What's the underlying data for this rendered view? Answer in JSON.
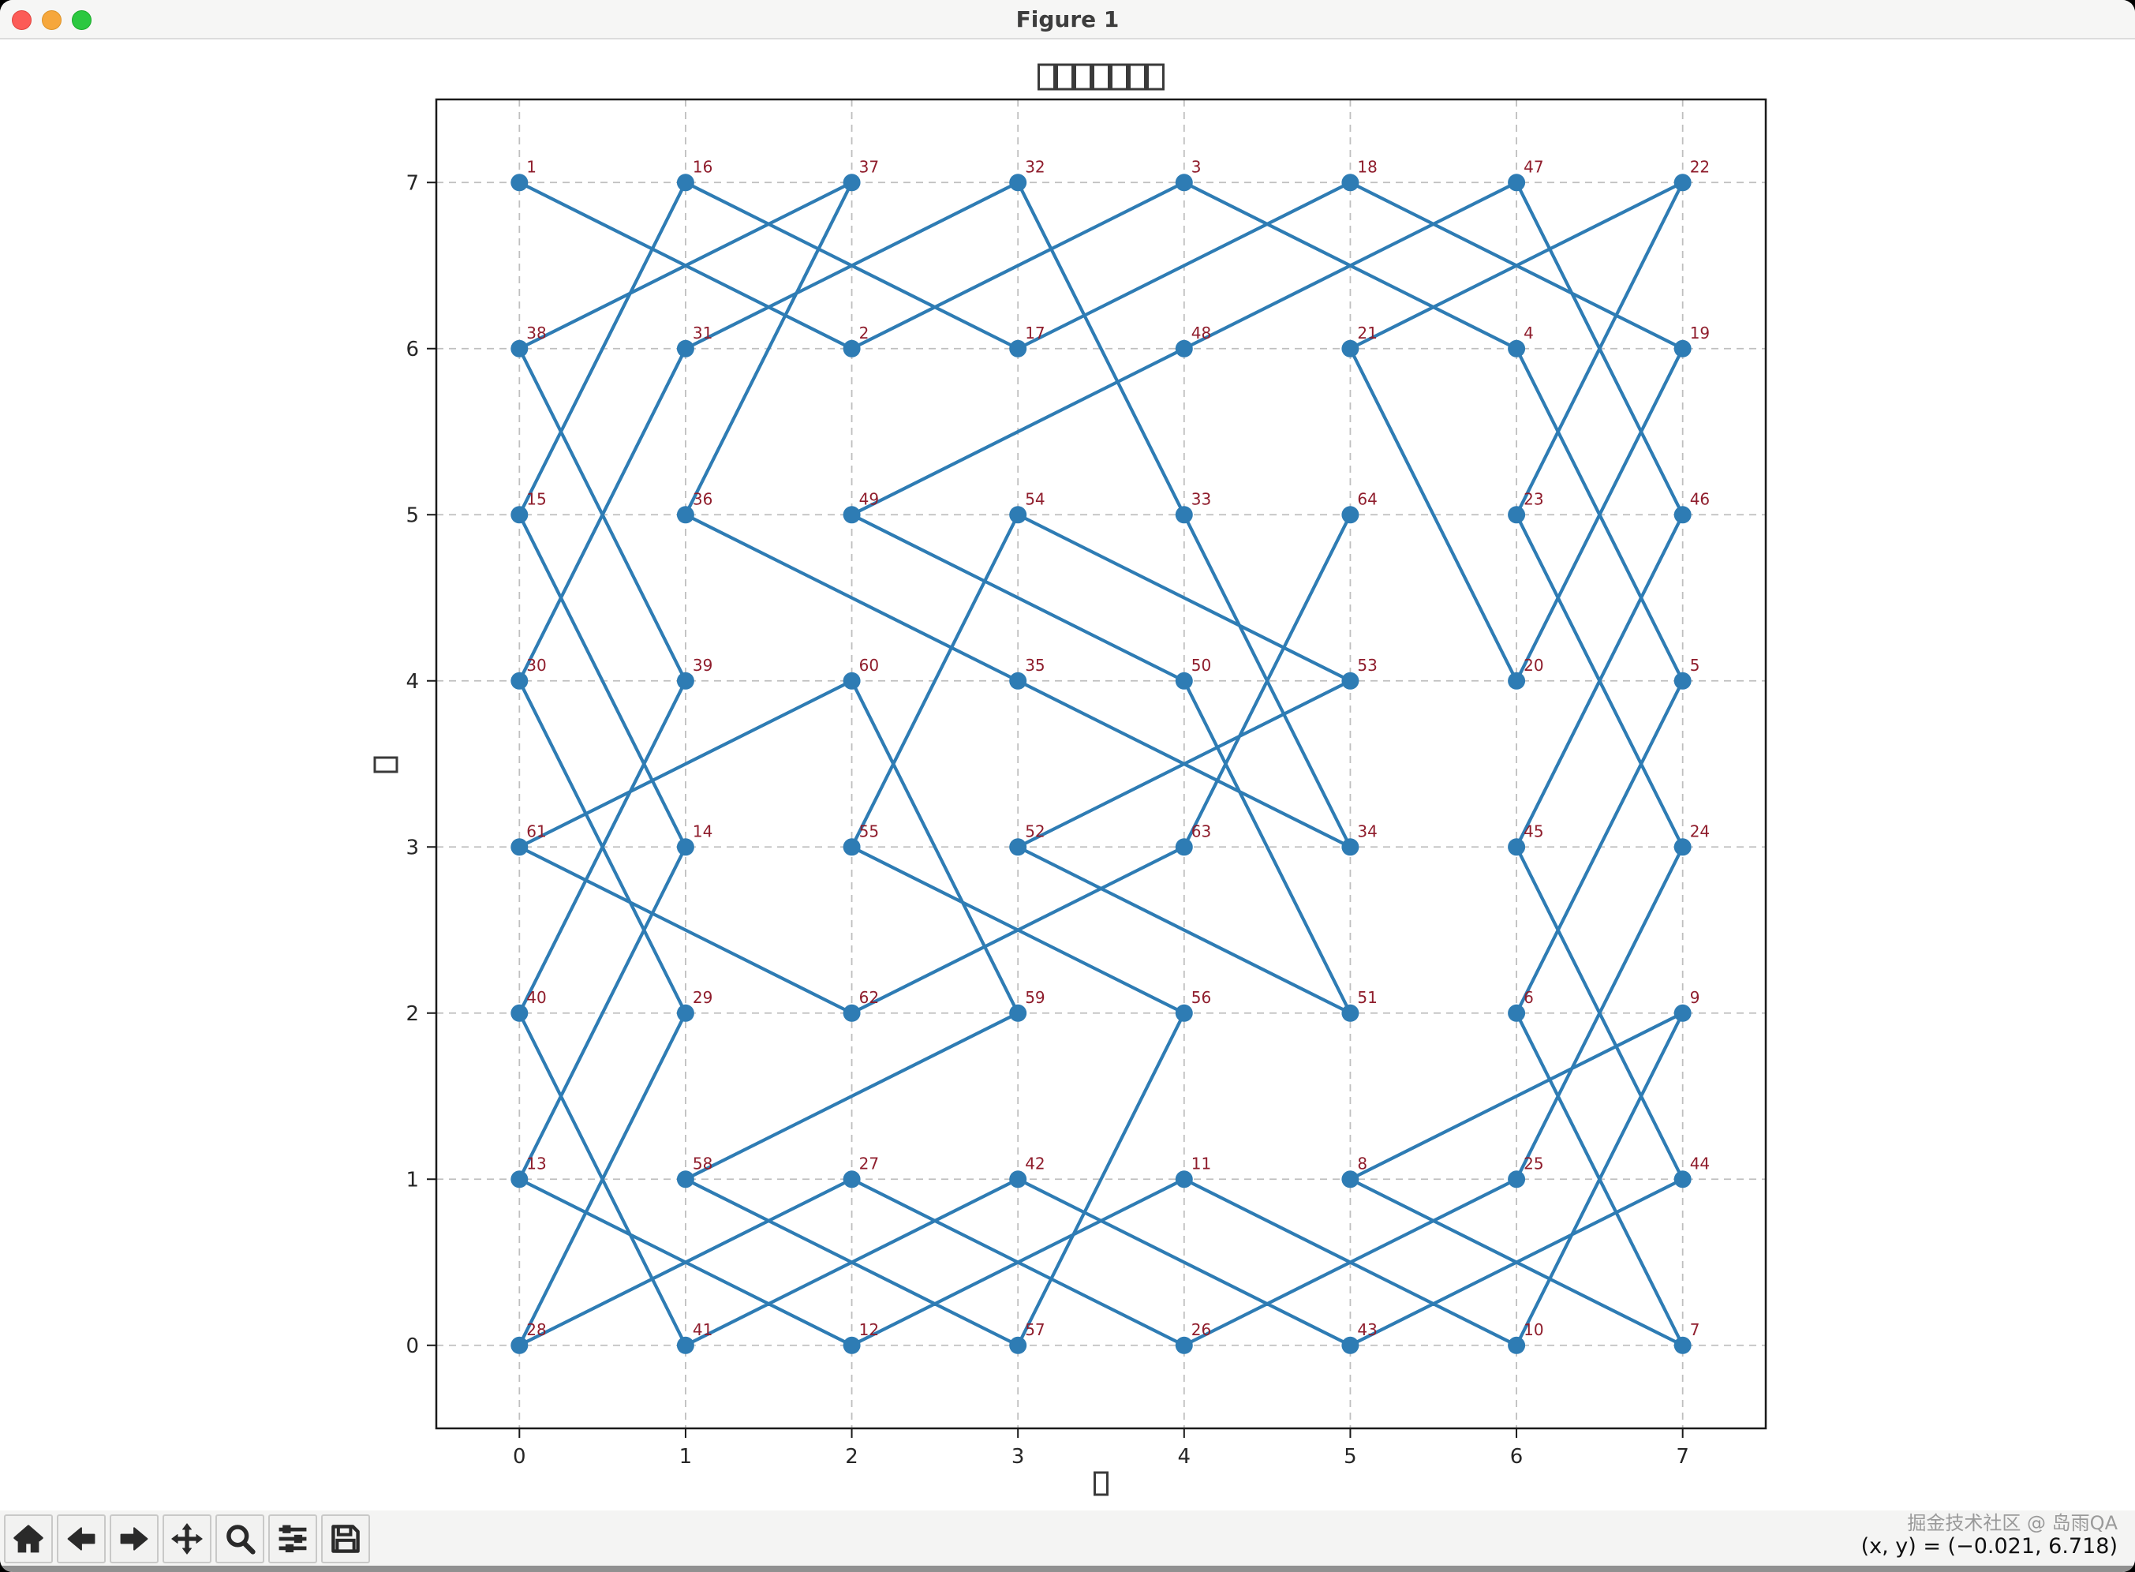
{
  "window": {
    "title": "Figure 1",
    "traffic_lights": [
      "close",
      "minimize",
      "zoom"
    ]
  },
  "chart_data": {
    "type": "line",
    "title": "□□□□□□□",
    "title_note": "7 missing-glyph (tofu) boxes rendered by matplotlib",
    "xlabel": "□",
    "ylabel": "□",
    "xlim": [
      -0.5,
      7.5
    ],
    "ylim": [
      -0.5,
      7.5
    ],
    "x_ticks": [
      "0",
      "1",
      "2",
      "3",
      "4",
      "5",
      "6",
      "7"
    ],
    "y_ticks": [
      "0",
      "1",
      "2",
      "3",
      "4",
      "5",
      "6",
      "7"
    ],
    "grid": true,
    "grid_style": "dashed",
    "line_color": "#2e7cb4",
    "marker_color": "#2e7cb4",
    "annotation_color": "#8f1d2c",
    "move_numbers": [
      1,
      2,
      3,
      4,
      5,
      6,
      7,
      8,
      9,
      10,
      11,
      12,
      13,
      14,
      15,
      16,
      17,
      18,
      19,
      20,
      21,
      22,
      23,
      24,
      25,
      26,
      27,
      28,
      29,
      30,
      31,
      32,
      33,
      34,
      35,
      36,
      37,
      38,
      39,
      40,
      41,
      42,
      43,
      44,
      45,
      46,
      47,
      48,
      49,
      50,
      51,
      52,
      53,
      54,
      55,
      56,
      57,
      58,
      59,
      60,
      61,
      62,
      63,
      64
    ],
    "tour": [
      [
        0,
        7
      ],
      [
        2,
        6
      ],
      [
        4,
        7
      ],
      [
        6,
        6
      ],
      [
        7,
        4
      ],
      [
        6,
        2
      ],
      [
        7,
        0
      ],
      [
        5,
        1
      ],
      [
        7,
        2
      ],
      [
        6,
        0
      ],
      [
        4,
        1
      ],
      [
        2,
        0
      ],
      [
        0,
        1
      ],
      [
        1,
        3
      ],
      [
        0,
        5
      ],
      [
        1,
        7
      ],
      [
        3,
        6
      ],
      [
        5,
        7
      ],
      [
        7,
        6
      ],
      [
        6,
        4
      ],
      [
        5,
        6
      ],
      [
        7,
        7
      ],
      [
        6,
        5
      ],
      [
        7,
        3
      ],
      [
        6,
        1
      ],
      [
        4,
        0
      ],
      [
        2,
        1
      ],
      [
        0,
        0
      ],
      [
        1,
        2
      ],
      [
        0,
        4
      ],
      [
        1,
        6
      ],
      [
        3,
        7
      ],
      [
        4,
        5
      ],
      [
        5,
        3
      ],
      [
        3,
        4
      ],
      [
        1,
        5
      ],
      [
        2,
        7
      ],
      [
        0,
        6
      ],
      [
        1,
        4
      ],
      [
        0,
        2
      ],
      [
        1,
        0
      ],
      [
        3,
        1
      ],
      [
        5,
        0
      ],
      [
        7,
        1
      ],
      [
        6,
        3
      ],
      [
        7,
        5
      ],
      [
        6,
        7
      ],
      [
        4,
        6
      ],
      [
        2,
        5
      ],
      [
        4,
        4
      ],
      [
        5,
        2
      ],
      [
        3,
        3
      ],
      [
        5,
        4
      ],
      [
        3,
        5
      ],
      [
        2,
        3
      ],
      [
        4,
        2
      ],
      [
        3,
        0
      ],
      [
        1,
        1
      ],
      [
        3,
        2
      ],
      [
        2,
        4
      ],
      [
        0,
        3
      ],
      [
        2,
        2
      ],
      [
        4,
        3
      ],
      [
        5,
        5
      ]
    ]
  },
  "toolbar": {
    "buttons": [
      {
        "name": "home",
        "tooltip": "Home"
      },
      {
        "name": "back",
        "tooltip": "Back"
      },
      {
        "name": "forward",
        "tooltip": "Forward"
      },
      {
        "name": "pan",
        "tooltip": "Pan"
      },
      {
        "name": "zoom",
        "tooltip": "Zoom"
      },
      {
        "name": "configure-subplots",
        "tooltip": "Configure subplots"
      },
      {
        "name": "save",
        "tooltip": "Save"
      }
    ]
  },
  "statusbar": {
    "watermark": "掘金技术社区 @ 岛雨QA",
    "cursor_position": "(x, y) = (−0.021, 6.718)"
  }
}
